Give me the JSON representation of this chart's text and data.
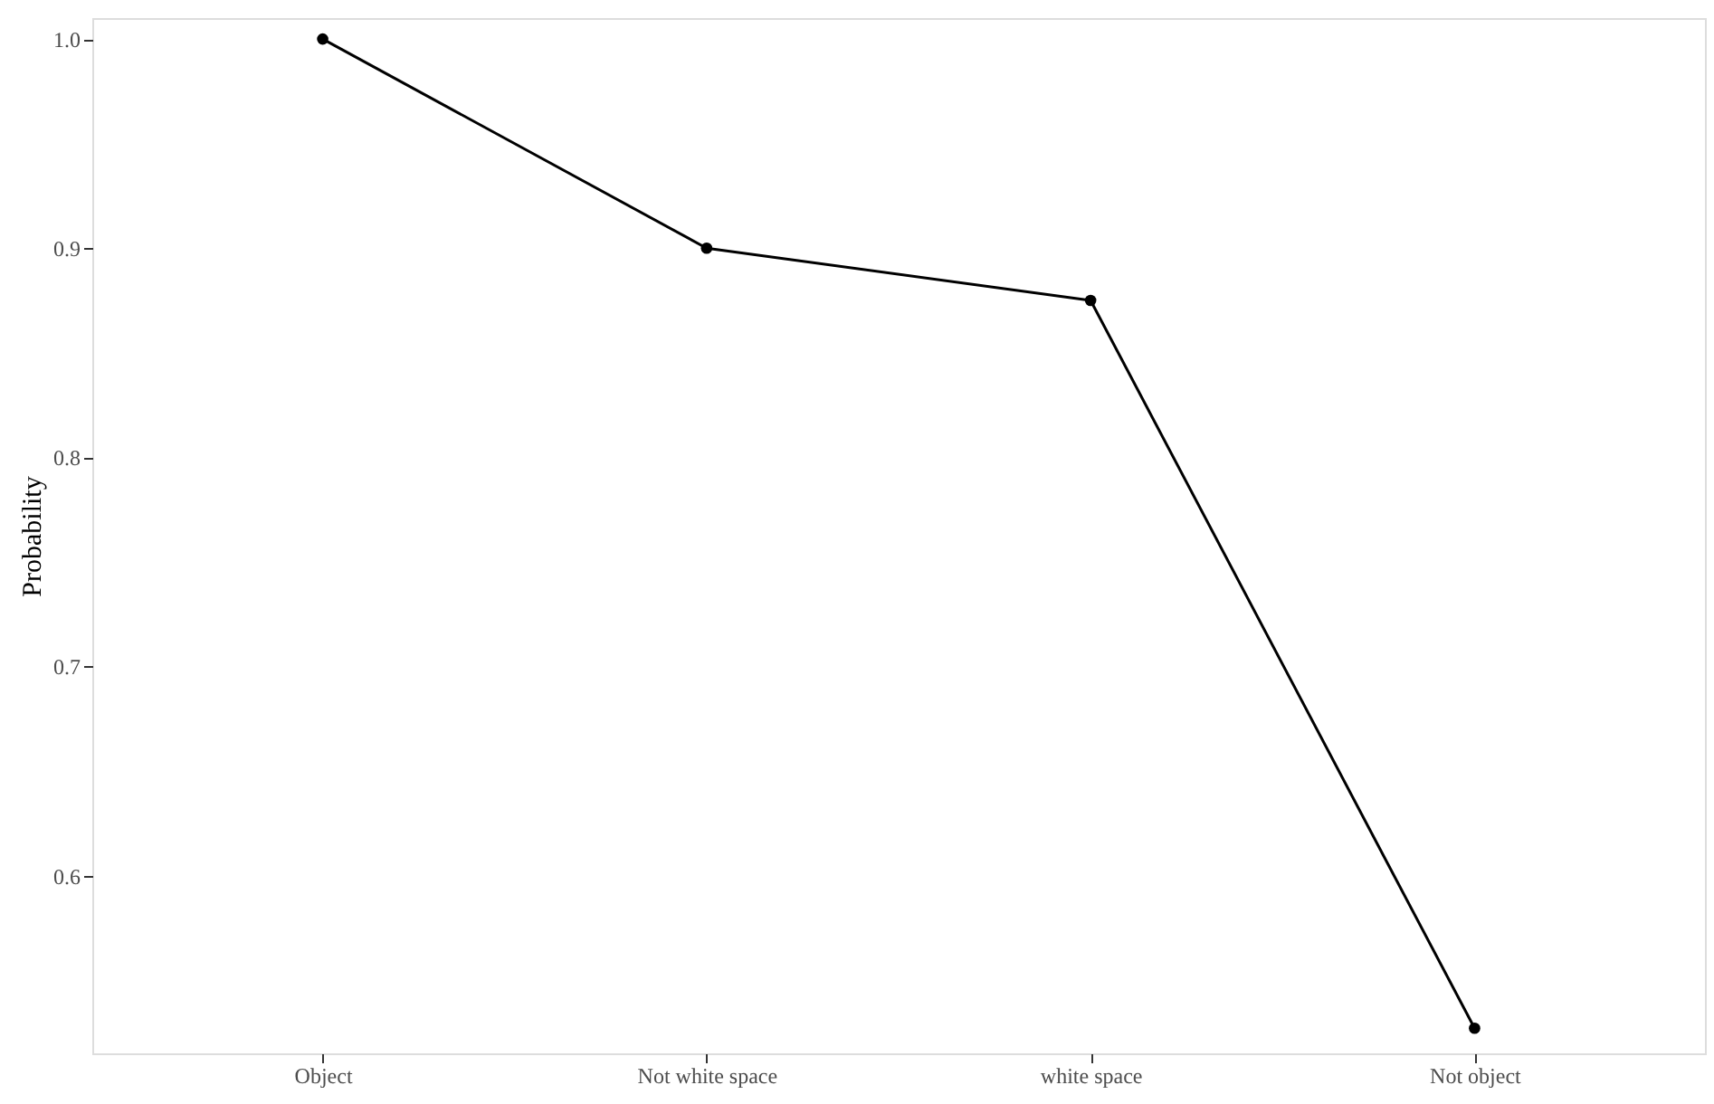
{
  "chart_data": {
    "type": "line",
    "ylabel": "Probability",
    "categories": [
      "Object",
      "Not white space",
      "white space",
      "Not object"
    ],
    "values": [
      1.0,
      0.9,
      0.875,
      0.527
    ],
    "color": "#000000",
    "marker": "circle",
    "line_style": "solid",
    "ylim": [
      0.515,
      1.01
    ],
    "yticks": [
      {
        "value": 0.6,
        "label": "0.6"
      },
      {
        "value": 0.7,
        "label": "0.7"
      },
      {
        "value": 0.8,
        "label": "0.8"
      },
      {
        "value": 0.9,
        "label": "0.9"
      },
      {
        "value": 1.0,
        "label": "1.0"
      }
    ],
    "grid": false
  }
}
